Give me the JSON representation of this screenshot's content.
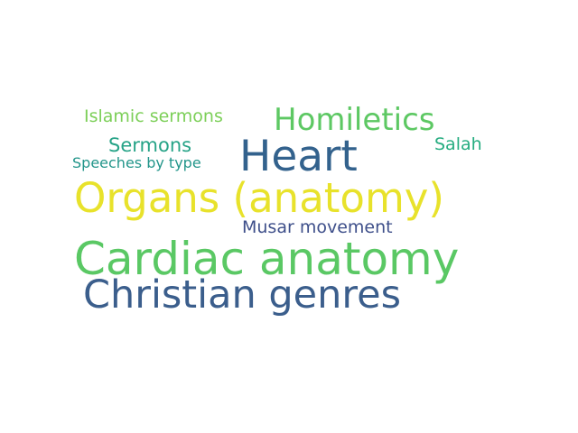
{
  "word_cloud": {
    "words": [
      {
        "text": "Cardiac anatomy",
        "color": "#5ac864"
      },
      {
        "text": "Organs (anatomy)",
        "color": "#e8e22b"
      },
      {
        "text": "Christian genres",
        "color": "#3b5e8c"
      },
      {
        "text": "Heart",
        "color": "#33628d"
      },
      {
        "text": "Homiletics",
        "color": "#5dc863"
      },
      {
        "text": "Islamic sermons",
        "color": "#7ccf58"
      },
      {
        "text": "Sermons",
        "color": "#26a387"
      },
      {
        "text": "Speeches by type",
        "color": "#22958a"
      },
      {
        "text": "Salah",
        "color": "#27ad81"
      },
      {
        "text": "Musar movement",
        "color": "#3e4f8a"
      }
    ]
  }
}
